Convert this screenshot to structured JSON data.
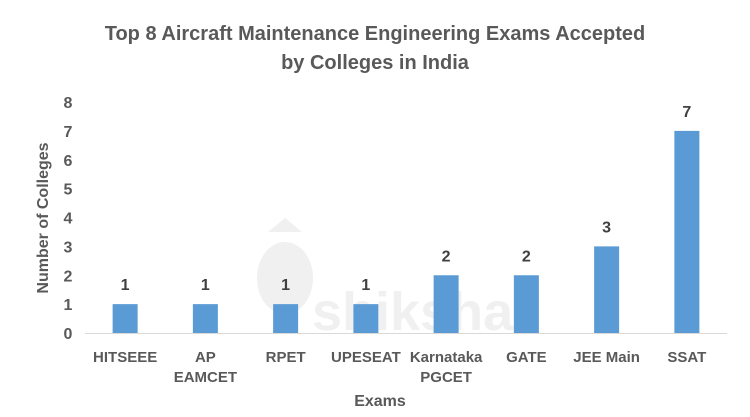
{
  "chart_data": {
    "type": "bar",
    "title": "Top 8 Aircraft Maintenance Engineering Exams Accepted by Colleges in India",
    "title_lines": [
      "Top 8 Aircraft Maintenance Engineering Exams Accepted",
      "by Colleges in India"
    ],
    "xlabel": "Exams",
    "ylabel": "Number of Colleges",
    "categories": [
      "HITSEEE",
      "AP EAMCET",
      "RPET",
      "UPESEAT",
      "Karnataka PGCET",
      "GATE",
      "JEE Main",
      "SSAT"
    ],
    "category_lines": [
      [
        "HITSEEE"
      ],
      [
        "AP",
        "EAMCET"
      ],
      [
        "RPET"
      ],
      [
        "UPESEAT"
      ],
      [
        "Karnataka",
        "PGCET"
      ],
      [
        "GATE"
      ],
      [
        "JEE Main"
      ],
      [
        "SSAT"
      ]
    ],
    "values": [
      1,
      1,
      1,
      1,
      2,
      2,
      3,
      7
    ],
    "ylim": [
      0,
      8
    ],
    "yticks": [
      0,
      1,
      2,
      3,
      4,
      5,
      6,
      7,
      8
    ],
    "grid": false,
    "data_labels": true,
    "bar_color": "#5b9bd5",
    "text_color": "#595959",
    "watermark": "shiksha"
  }
}
